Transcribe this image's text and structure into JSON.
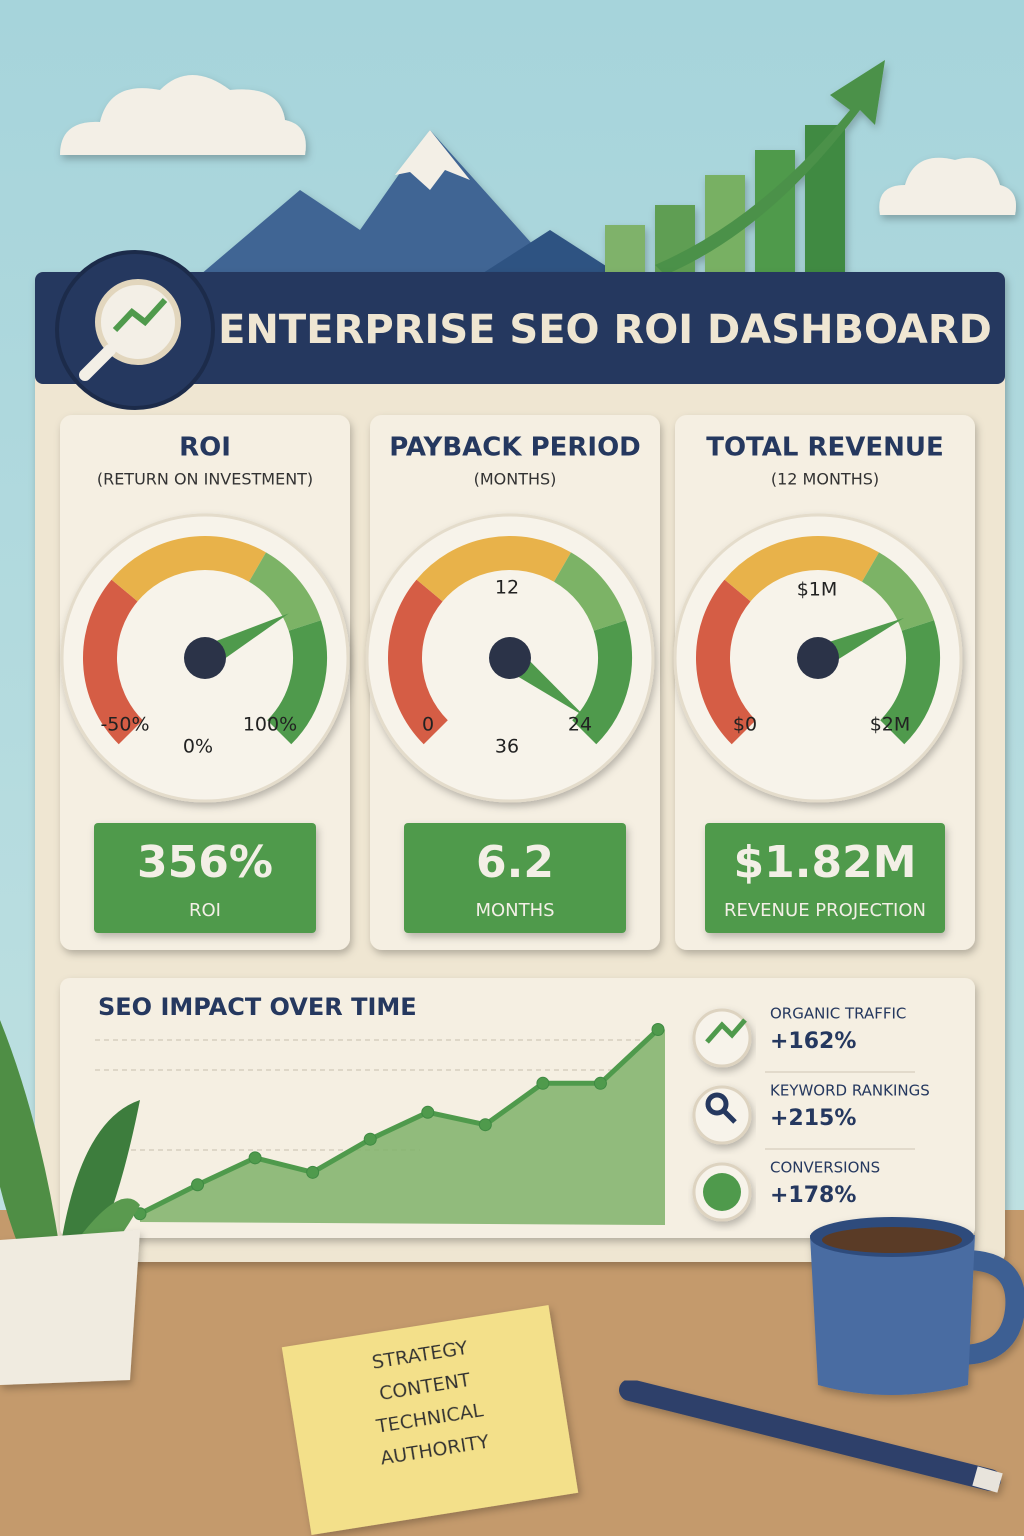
{
  "header": {
    "title": "ENTERPRISE SEO ROI DASHBOARD"
  },
  "cards": [
    {
      "title": "ROI",
      "subtitle": "(RETURN ON INVESTMENT)",
      "gauge_labels": [
        "-50%",
        "0%",
        "100%"
      ],
      "value": "356%",
      "value_label": "ROI"
    },
    {
      "title": "PAYBACK PERIOD",
      "subtitle": "(MONTHS)",
      "gauge_labels": [
        "12",
        "0",
        "36",
        "24"
      ],
      "value": "6.2",
      "value_label": "MONTHS"
    },
    {
      "title": "TOTAL REVENUE",
      "subtitle": "(12 MONTHS)",
      "gauge_labels": [
        "$1M",
        "$0",
        "$2M"
      ],
      "value": "$1.82M",
      "value_label": "REVENUE PROJECTION"
    }
  ],
  "impact_chart": {
    "title": "SEO IMPACT OVER TIME",
    "values": [
      4,
      18,
      31,
      24,
      40,
      53,
      47,
      67,
      67,
      93
    ],
    "ylim": [
      0,
      100
    ],
    "color": "#4f9a4c"
  },
  "metrics": [
    {
      "label": "ORGANIC TRAFFIC",
      "value": "+162%"
    },
    {
      "label": "KEYWORD RANKINGS",
      "value": "+215%"
    },
    {
      "label": "CONVERSIONS",
      "value": "+178%"
    }
  ],
  "sticky_note": {
    "lines": [
      "STRATEGY",
      "CONTENT",
      "TECHNICAL",
      "AUTHORITY"
    ]
  }
}
